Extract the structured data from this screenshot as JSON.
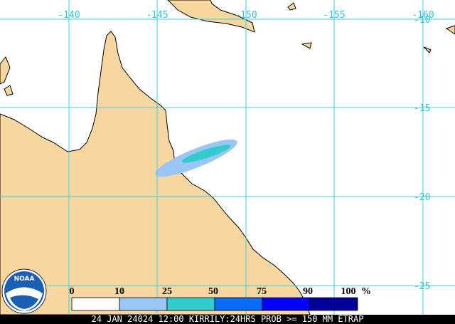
{
  "map": {
    "longitude_labels": [
      "-140",
      "-145",
      "-150",
      "-155",
      "-160"
    ],
    "latitude_labels": [
      "-10",
      "-15",
      "-20",
      "-25"
    ],
    "legend": {
      "labels": [
        "0",
        "10",
        "25",
        "50",
        "75",
        "90",
        "100"
      ],
      "unit": "%"
    },
    "footer": "24 JAN 24024 12:00 KIRRILY:24HRS PROB >= 150 MM ETRAP",
    "logo": "NOAA"
  }
}
